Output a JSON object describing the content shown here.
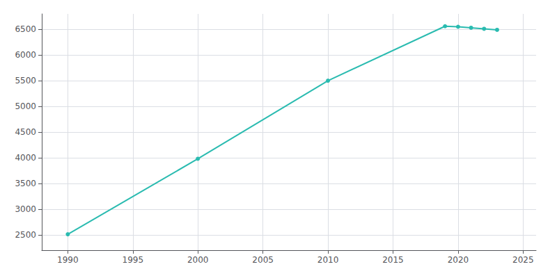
{
  "chart_data": {
    "type": "line",
    "x": [
      1990,
      2000,
      2010,
      2019,
      2020,
      2021,
      2022,
      2023
    ],
    "values": [
      2510,
      3980,
      5500,
      6560,
      6550,
      6530,
      6510,
      6490
    ],
    "color": "#2abbb0",
    "marker": "circle",
    "xlim": [
      1988,
      2026
    ],
    "ylim": [
      2200,
      6800
    ],
    "xticks": [
      1990,
      1995,
      2000,
      2005,
      2010,
      2015,
      2020,
      2025
    ],
    "yticks": [
      2500,
      3000,
      3500,
      4000,
      4500,
      5000,
      5500,
      6000,
      6500
    ],
    "grid": true
  }
}
